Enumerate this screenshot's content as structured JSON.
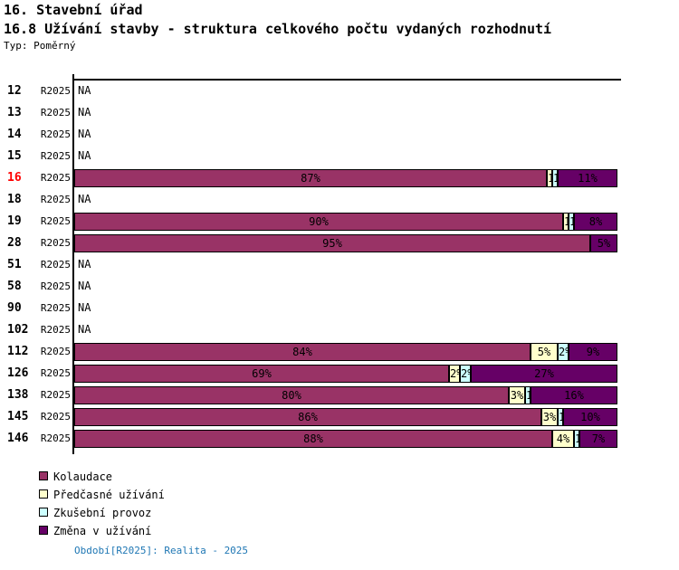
{
  "header": {
    "title1": "16. Stavební úřad",
    "title2": "16.8 Užívání stavby - struktura celkového počtu vydaných rozhodnutí",
    "type_label": "Typ: Poměrný"
  },
  "chart_data": {
    "type": "bar",
    "orientation": "horizontal",
    "stacked": true,
    "unit": "%",
    "xlim": [
      0,
      100
    ],
    "na_label": "NA",
    "highlight_color": "#FF0000",
    "series": [
      {
        "name": "Kolaudace",
        "color": "#993366"
      },
      {
        "name": "Předčasné užívání",
        "color": "#FFFFCC"
      },
      {
        "name": "Zkušební provoz",
        "color": "#CCFFFF"
      },
      {
        "name": "Změna v užívání",
        "color": "#660066"
      }
    ],
    "rows": [
      {
        "id": "12",
        "period": "R2025",
        "values": null,
        "highlight": false
      },
      {
        "id": "13",
        "period": "R2025",
        "values": null,
        "highlight": false
      },
      {
        "id": "14",
        "period": "R2025",
        "values": null,
        "highlight": false
      },
      {
        "id": "15",
        "period": "R2025",
        "values": null,
        "highlight": false
      },
      {
        "id": "16",
        "period": "R2025",
        "values": [
          87,
          1,
          1,
          11
        ],
        "highlight": true
      },
      {
        "id": "18",
        "period": "R2025",
        "values": null,
        "highlight": false
      },
      {
        "id": "19",
        "period": "R2025",
        "values": [
          90,
          1,
          1,
          8
        ],
        "highlight": false
      },
      {
        "id": "28",
        "period": "R2025",
        "values": [
          95,
          0,
          0,
          5
        ],
        "highlight": false
      },
      {
        "id": "51",
        "period": "R2025",
        "values": null,
        "highlight": false
      },
      {
        "id": "58",
        "period": "R2025",
        "values": null,
        "highlight": false
      },
      {
        "id": "90",
        "period": "R2025",
        "values": null,
        "highlight": false
      },
      {
        "id": "102",
        "period": "R2025",
        "values": null,
        "highlight": false
      },
      {
        "id": "112",
        "period": "R2025",
        "values": [
          84,
          5,
          2,
          9
        ],
        "highlight": false
      },
      {
        "id": "126",
        "period": "R2025",
        "values": [
          69,
          2,
          2,
          27
        ],
        "highlight": false
      },
      {
        "id": "138",
        "period": "R2025",
        "values": [
          80,
          3,
          1,
          16
        ],
        "highlight": false
      },
      {
        "id": "145",
        "period": "R2025",
        "values": [
          86,
          3,
          1,
          10
        ],
        "highlight": false
      },
      {
        "id": "146",
        "period": "R2025",
        "values": [
          88,
          4,
          1,
          7
        ],
        "highlight": false
      }
    ]
  },
  "footer": {
    "text": "Období[R2025]: Realita - 2025",
    "color": "#1F77B4"
  }
}
